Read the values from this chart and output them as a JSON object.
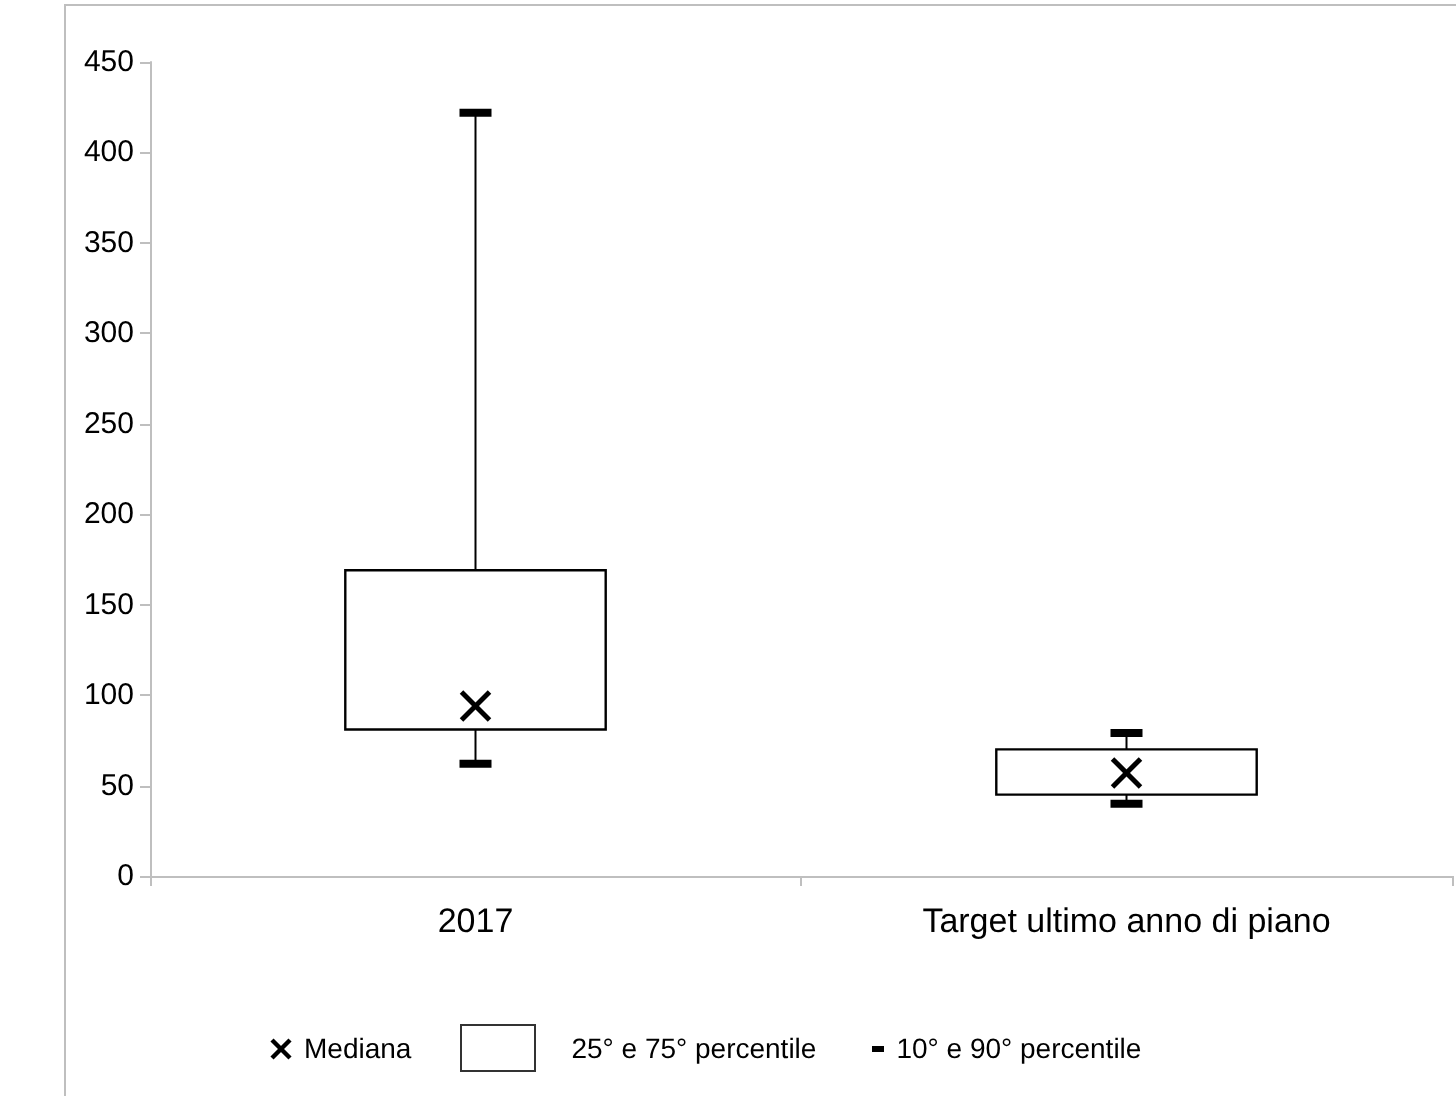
{
  "chart_data": {
    "type": "box",
    "categories": [
      "2017",
      "Target ultimo anno di piano"
    ],
    "series": [
      {
        "name": "25° e 75° percentile",
        "color": "#000000",
        "boxes": [
          {
            "low": 62,
            "q1": 81,
            "median": 94,
            "q3": 169,
            "high": 422
          },
          {
            "low": 40,
            "q1": 45,
            "median": 57,
            "q3": 70,
            "high": 79
          }
        ]
      }
    ],
    "ylim": [
      0,
      450
    ],
    "yticks": [
      0,
      50,
      100,
      150,
      200,
      250,
      300,
      350,
      400,
      450
    ],
    "grid": false,
    "legend": "bottom",
    "marker": "cross",
    "annotations": [
      "Mediana",
      "10° e 90° percentile"
    ]
  }
}
